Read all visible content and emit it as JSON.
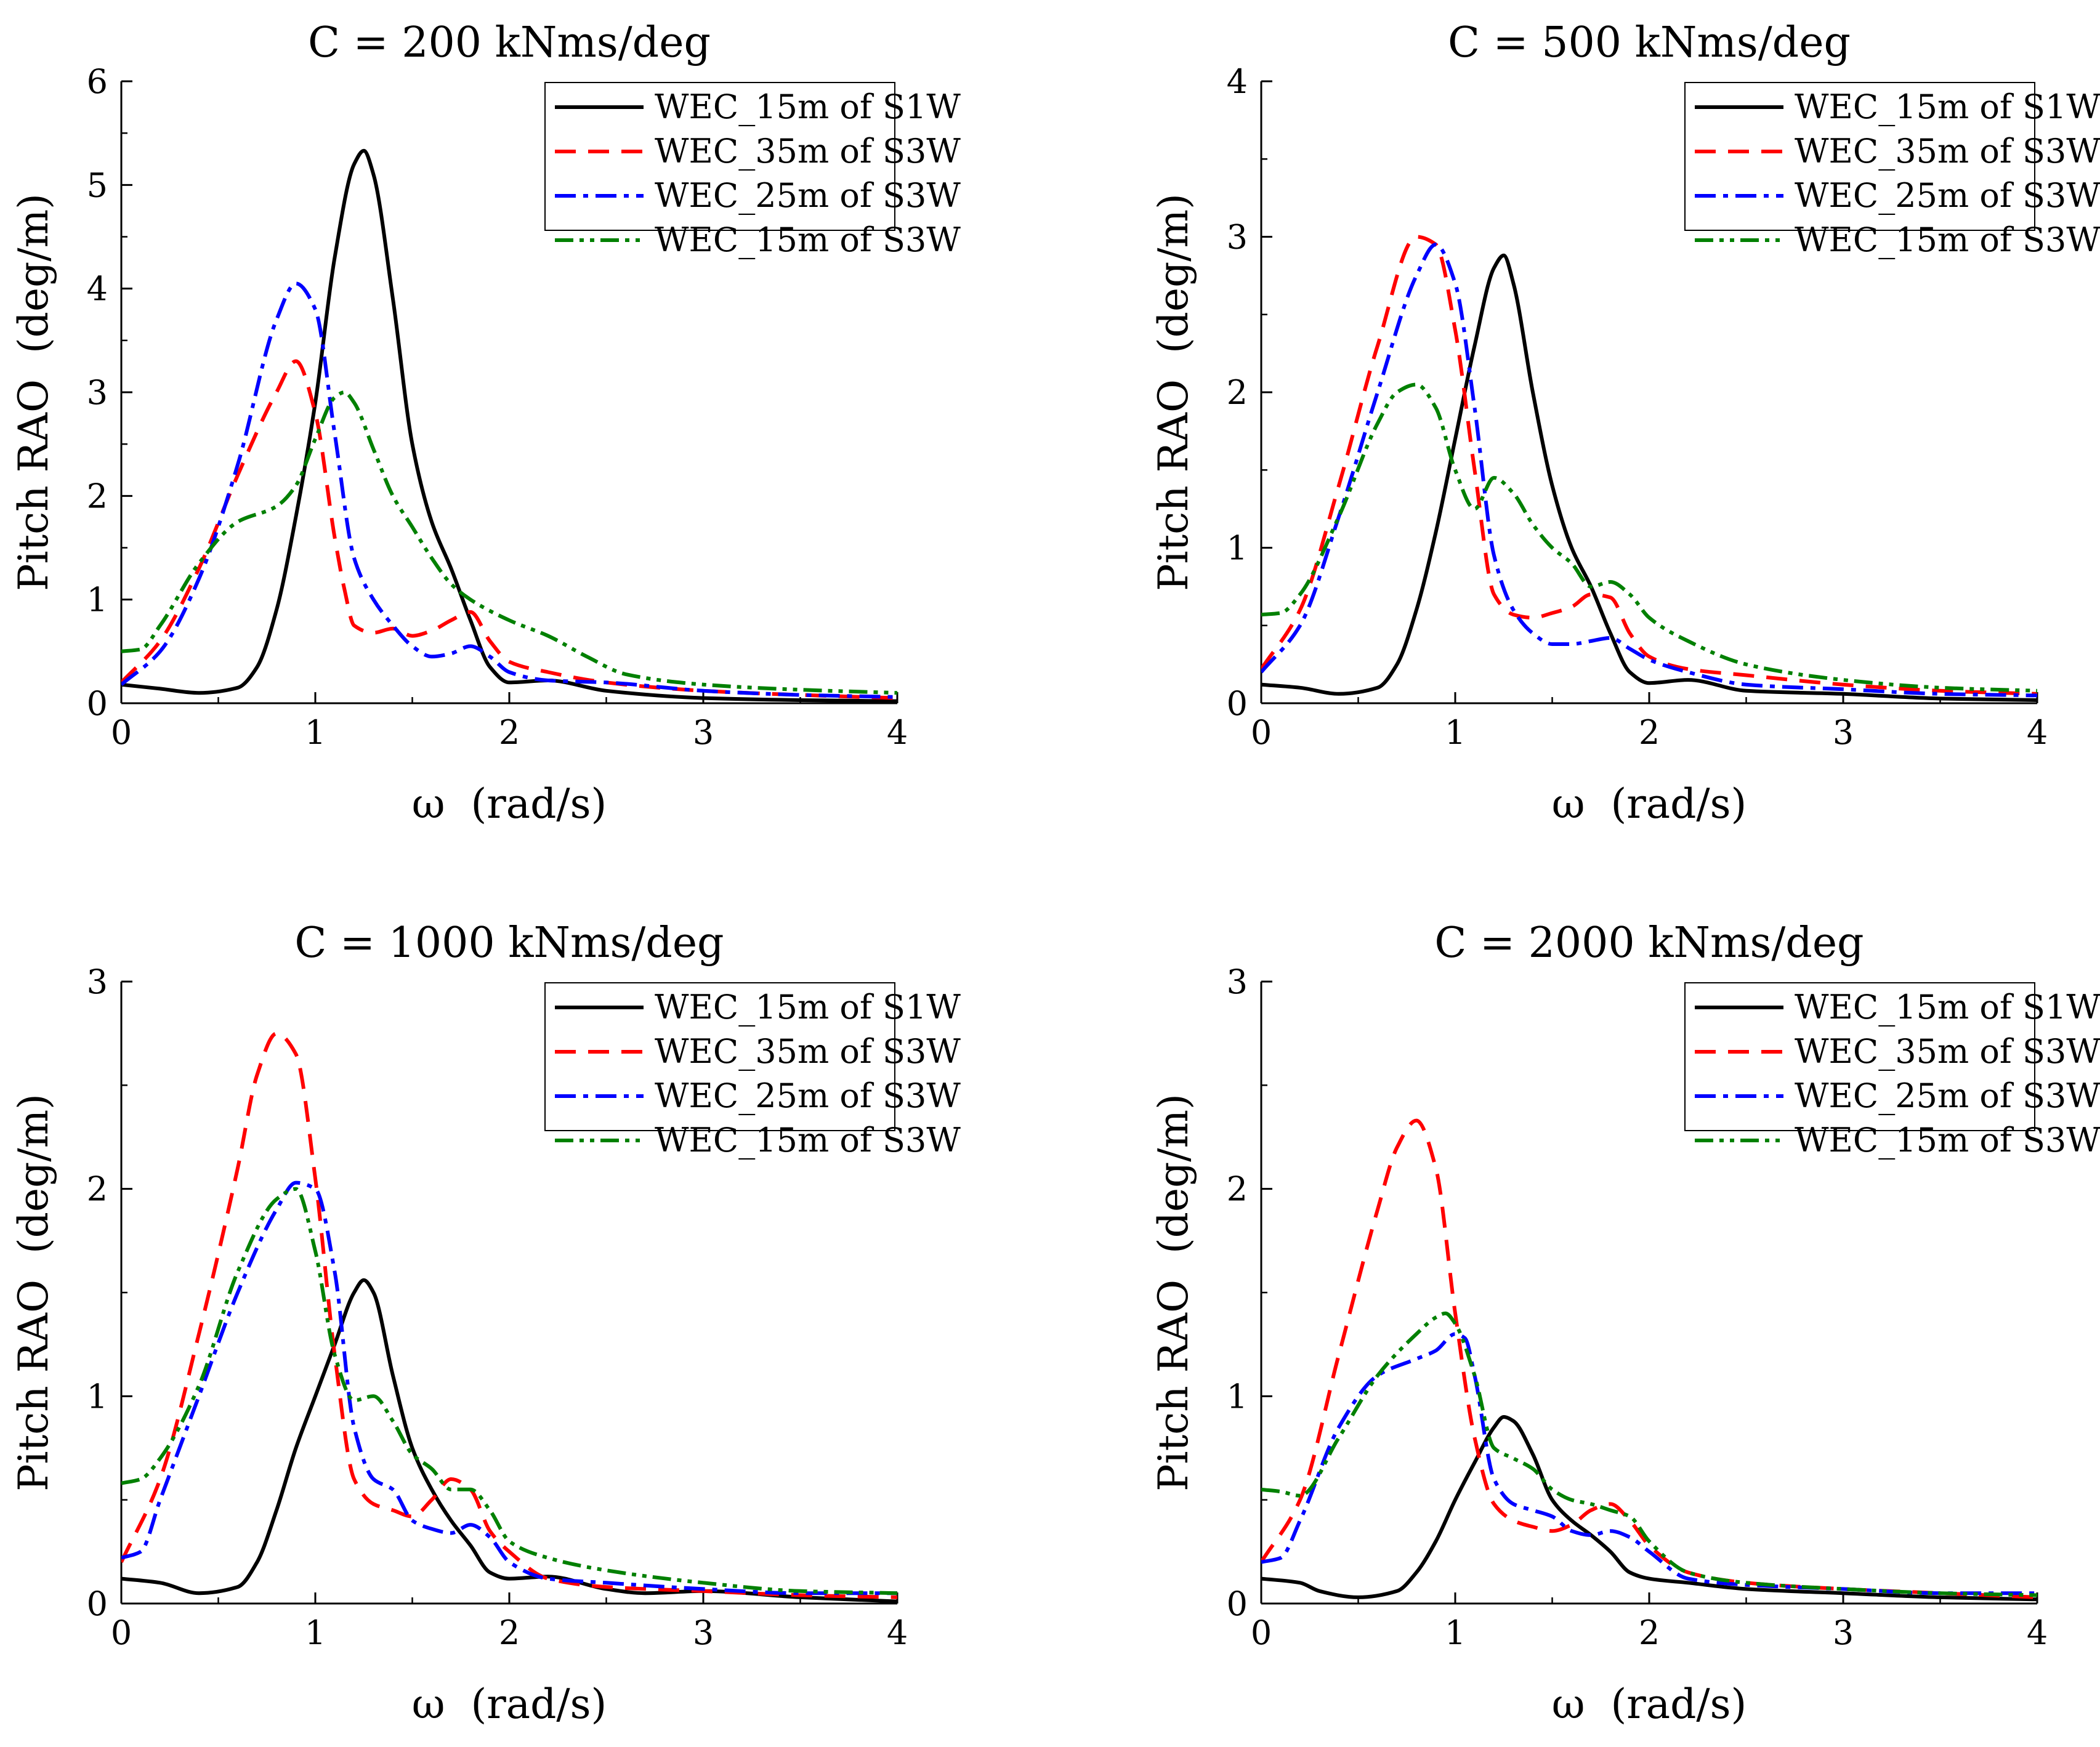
{
  "figure": {
    "x_unit_label": "ω  (rad/s)",
    "y_unit_label": "Pitch RAO  (deg/m)"
  },
  "legend_entries": [
    "WEC_15m of S1W",
    "WEC_35m of S3W",
    "WEC_25m of S3W",
    "WEC_15m of S3W"
  ],
  "series_styles": [
    {
      "name": "WEC_15m of S1W",
      "color": "#000000",
      "dash": "solid"
    },
    {
      "name": "WEC_35m of S3W",
      "color": "#ff0000",
      "dash": "dash"
    },
    {
      "name": "WEC_25m of S3W",
      "color": "#0000ff",
      "dash": "dashdot"
    },
    {
      "name": "WEC_15m of S3W",
      "color": "#008000",
      "dash": "dashdotdot"
    }
  ],
  "chart_data": [
    {
      "type": "line",
      "title": "C = 200 kNms/deg",
      "xlabel": "ω  (rad/s)",
      "ylabel": "Pitch RAO  (deg/m)",
      "xlim": [
        0,
        4
      ],
      "ylim": [
        0,
        6
      ],
      "xticks": [
        "0",
        "1",
        "2",
        "3",
        "4"
      ],
      "yticks": [
        "0",
        "1",
        "2",
        "3",
        "4",
        "5",
        "6"
      ],
      "legend_position": "top-right",
      "series": [
        {
          "name": "WEC_15m of S1W",
          "x": [
            0,
            0.2,
            0.4,
            0.6,
            0.7,
            0.8,
            0.9,
            1.0,
            1.1,
            1.2,
            1.25,
            1.3,
            1.4,
            1.5,
            1.6,
            1.7,
            1.8,
            1.9,
            2.0,
            2.2,
            2.5,
            3.0,
            3.5,
            4.0
          ],
          "y": [
            0.18,
            0.14,
            0.1,
            0.15,
            0.35,
            0.9,
            1.8,
            2.9,
            4.3,
            5.2,
            5.33,
            5.1,
            3.9,
            2.5,
            1.75,
            1.3,
            0.8,
            0.35,
            0.2,
            0.22,
            0.12,
            0.05,
            0.03,
            0.02
          ]
        },
        {
          "name": "WEC_35m of S3W",
          "x": [
            0,
            0.2,
            0.4,
            0.6,
            0.8,
            0.9,
            1.0,
            1.1,
            1.15,
            1.2,
            1.3,
            1.4,
            1.5,
            1.6,
            1.7,
            1.8,
            1.9,
            2.0,
            2.2,
            2.5,
            3.0,
            3.5,
            4.0
          ],
          "y": [
            0.2,
            0.6,
            1.3,
            2.2,
            3.0,
            3.3,
            2.8,
            1.6,
            1.1,
            0.75,
            0.68,
            0.72,
            0.65,
            0.7,
            0.8,
            0.88,
            0.6,
            0.4,
            0.3,
            0.2,
            0.12,
            0.08,
            0.05
          ]
        },
        {
          "name": "WEC_25m of S3W",
          "x": [
            0,
            0.2,
            0.4,
            0.6,
            0.8,
            0.9,
            1.0,
            1.1,
            1.2,
            1.3,
            1.4,
            1.5,
            1.6,
            1.7,
            1.8,
            1.9,
            2.0,
            2.2,
            2.5,
            3.0,
            3.5,
            4.0
          ],
          "y": [
            0.18,
            0.5,
            1.2,
            2.3,
            3.7,
            4.05,
            3.8,
            2.6,
            1.4,
            1.0,
            0.75,
            0.55,
            0.45,
            0.48,
            0.55,
            0.45,
            0.3,
            0.22,
            0.2,
            0.12,
            0.08,
            0.06
          ]
        },
        {
          "name": "WEC_15m of S3W",
          "x": [
            0,
            0.1,
            0.2,
            0.4,
            0.6,
            0.8,
            0.9,
            1.0,
            1.1,
            1.15,
            1.2,
            1.3,
            1.4,
            1.5,
            1.6,
            1.7,
            1.8,
            2.0,
            2.2,
            2.4,
            2.6,
            3.0,
            3.5,
            4.0
          ],
          "y": [
            0.5,
            0.52,
            0.75,
            1.35,
            1.75,
            1.9,
            2.1,
            2.55,
            2.95,
            3.0,
            2.9,
            2.45,
            2.0,
            1.7,
            1.4,
            1.15,
            1.0,
            0.8,
            0.65,
            0.45,
            0.28,
            0.18,
            0.13,
            0.1
          ]
        }
      ]
    },
    {
      "type": "line",
      "title": "C = 500 kNms/deg",
      "xlabel": "ω  (rad/s)",
      "ylabel": "Pitch RAO  (deg/m)",
      "xlim": [
        0,
        4
      ],
      "ylim": [
        0,
        4
      ],
      "xticks": [
        "0",
        "1",
        "2",
        "3",
        "4"
      ],
      "yticks": [
        "0",
        "1",
        "2",
        "3",
        "4"
      ],
      "legend_position": "top-right",
      "series": [
        {
          "name": "WEC_15m of S1W",
          "x": [
            0,
            0.2,
            0.4,
            0.6,
            0.7,
            0.8,
            0.9,
            1.0,
            1.1,
            1.2,
            1.25,
            1.3,
            1.4,
            1.5,
            1.6,
            1.7,
            1.8,
            1.9,
            2.0,
            2.2,
            2.5,
            3.0,
            3.5,
            4.0
          ],
          "y": [
            0.12,
            0.1,
            0.06,
            0.1,
            0.25,
            0.6,
            1.1,
            1.7,
            2.3,
            2.8,
            2.88,
            2.7,
            2.0,
            1.4,
            1.0,
            0.75,
            0.45,
            0.2,
            0.13,
            0.15,
            0.08,
            0.06,
            0.03,
            0.02
          ]
        },
        {
          "name": "WEC_35m of S3W",
          "x": [
            0,
            0.2,
            0.4,
            0.6,
            0.8,
            0.9,
            1.0,
            1.1,
            1.2,
            1.3,
            1.4,
            1.5,
            1.6,
            1.7,
            1.8,
            1.9,
            2.0,
            2.2,
            2.5,
            3.0,
            3.5,
            4.0
          ],
          "y": [
            0.22,
            0.6,
            1.4,
            2.3,
            3.0,
            2.95,
            2.4,
            1.5,
            0.7,
            0.57,
            0.55,
            0.58,
            0.62,
            0.7,
            0.68,
            0.45,
            0.3,
            0.22,
            0.18,
            0.12,
            0.08,
            0.06
          ]
        },
        {
          "name": "WEC_25m of S3W",
          "x": [
            0,
            0.2,
            0.4,
            0.6,
            0.8,
            0.9,
            1.0,
            1.1,
            1.2,
            1.3,
            1.4,
            1.5,
            1.6,
            1.7,
            1.8,
            1.9,
            2.0,
            2.2,
            2.5,
            3.0,
            3.5,
            4.0
          ],
          "y": [
            0.2,
            0.5,
            1.2,
            2.0,
            2.75,
            2.95,
            2.7,
            1.9,
            0.95,
            0.6,
            0.45,
            0.38,
            0.38,
            0.4,
            0.42,
            0.35,
            0.28,
            0.2,
            0.12,
            0.09,
            0.06,
            0.05
          ]
        },
        {
          "name": "WEC_15m of S3W",
          "x": [
            0,
            0.1,
            0.2,
            0.4,
            0.6,
            0.7,
            0.8,
            0.9,
            1.0,
            1.1,
            1.2,
            1.3,
            1.4,
            1.5,
            1.6,
            1.7,
            1.8,
            1.9,
            2.0,
            2.2,
            2.5,
            3.0,
            3.5,
            4.0
          ],
          "y": [
            0.57,
            0.58,
            0.7,
            1.2,
            1.8,
            2.0,
            2.05,
            1.9,
            1.5,
            1.25,
            1.45,
            1.35,
            1.15,
            1.0,
            0.9,
            0.75,
            0.78,
            0.7,
            0.55,
            0.4,
            0.25,
            0.15,
            0.1,
            0.08
          ]
        }
      ]
    },
    {
      "type": "line",
      "title": "C = 1000 kNms/deg",
      "xlabel": "ω  (rad/s)",
      "ylabel": "Pitch RAO  (deg/m)",
      "xlim": [
        0,
        4
      ],
      "ylim": [
        0,
        3
      ],
      "xticks": [
        "0",
        "1",
        "2",
        "3",
        "4"
      ],
      "yticks": [
        "0",
        "1",
        "2",
        "3"
      ],
      "legend_position": "top-right",
      "series": [
        {
          "name": "WEC_15m of S1W",
          "x": [
            0,
            0.2,
            0.4,
            0.6,
            0.7,
            0.8,
            0.9,
            1.0,
            1.1,
            1.2,
            1.25,
            1.3,
            1.4,
            1.5,
            1.6,
            1.7,
            1.8,
            1.9,
            2.0,
            2.2,
            2.5,
            2.7,
            3.0,
            3.5,
            4.0
          ],
          "y": [
            0.12,
            0.1,
            0.05,
            0.08,
            0.2,
            0.45,
            0.75,
            1.0,
            1.25,
            1.5,
            1.56,
            1.5,
            1.1,
            0.75,
            0.55,
            0.4,
            0.28,
            0.15,
            0.12,
            0.13,
            0.07,
            0.05,
            0.06,
            0.03,
            0.01
          ]
        },
        {
          "name": "WEC_35m of S3W",
          "x": [
            0,
            0.2,
            0.4,
            0.6,
            0.7,
            0.8,
            0.9,
            1.0,
            1.1,
            1.2,
            1.3,
            1.4,
            1.5,
            1.6,
            1.7,
            1.8,
            1.9,
            2.0,
            2.2,
            2.5,
            3.0,
            3.5,
            4.0
          ],
          "y": [
            0.2,
            0.6,
            1.3,
            2.1,
            2.55,
            2.75,
            2.65,
            2.05,
            1.2,
            0.6,
            0.48,
            0.45,
            0.42,
            0.5,
            0.6,
            0.55,
            0.35,
            0.25,
            0.12,
            0.08,
            0.06,
            0.04,
            0.03
          ]
        },
        {
          "name": "WEC_25m of S3W",
          "x": [
            0,
            0.1,
            0.2,
            0.4,
            0.6,
            0.8,
            0.9,
            1.0,
            1.1,
            1.2,
            1.3,
            1.4,
            1.5,
            1.6,
            1.7,
            1.8,
            1.9,
            2.0,
            2.2,
            2.5,
            3.0,
            3.5,
            4.0
          ],
          "y": [
            0.22,
            0.25,
            0.5,
            1.0,
            1.5,
            1.9,
            2.03,
            2.0,
            1.6,
            0.85,
            0.6,
            0.55,
            0.4,
            0.36,
            0.34,
            0.38,
            0.32,
            0.2,
            0.12,
            0.1,
            0.07,
            0.05,
            0.05
          ]
        },
        {
          "name": "WEC_15m of S3W",
          "x": [
            0,
            0.1,
            0.2,
            0.4,
            0.6,
            0.8,
            0.9,
            1.0,
            1.1,
            1.2,
            1.3,
            1.4,
            1.5,
            1.6,
            1.7,
            1.8,
            1.9,
            2.0,
            2.2,
            2.5,
            3.0,
            3.5,
            4.0
          ],
          "y": [
            0.58,
            0.6,
            0.7,
            1.05,
            1.6,
            1.95,
            2.0,
            1.7,
            1.2,
            0.98,
            1.0,
            0.88,
            0.72,
            0.65,
            0.55,
            0.55,
            0.45,
            0.3,
            0.22,
            0.16,
            0.1,
            0.06,
            0.05
          ]
        }
      ]
    },
    {
      "type": "line",
      "title": "C = 2000 kNms/deg",
      "xlabel": "ω  (rad/s)",
      "ylabel": "Pitch RAO  (deg/m)",
      "xlim": [
        0,
        4
      ],
      "ylim": [
        0,
        3
      ],
      "xticks": [
        "0",
        "1",
        "2",
        "3",
        "4"
      ],
      "yticks": [
        "0",
        "1",
        "2",
        "3"
      ],
      "legend_position": "top-right",
      "series": [
        {
          "name": "WEC_15m of S1W",
          "x": [
            0,
            0.2,
            0.3,
            0.5,
            0.7,
            0.8,
            0.9,
            1.0,
            1.1,
            1.2,
            1.25,
            1.3,
            1.4,
            1.5,
            1.6,
            1.7,
            1.8,
            1.9,
            2.0,
            2.2,
            2.5,
            3.0,
            3.5,
            4.0
          ],
          "y": [
            0.12,
            0.1,
            0.06,
            0.03,
            0.06,
            0.15,
            0.3,
            0.5,
            0.68,
            0.85,
            0.9,
            0.88,
            0.72,
            0.5,
            0.4,
            0.33,
            0.25,
            0.15,
            0.12,
            0.1,
            0.07,
            0.05,
            0.03,
            0.02
          ]
        },
        {
          "name": "WEC_35m of S3W",
          "x": [
            0,
            0.2,
            0.4,
            0.6,
            0.7,
            0.8,
            0.9,
            1.0,
            1.1,
            1.2,
            1.3,
            1.4,
            1.5,
            1.6,
            1.7,
            1.8,
            1.9,
            2.0,
            2.2,
            2.5,
            3.0,
            3.5,
            4.0
          ],
          "y": [
            0.2,
            0.5,
            1.2,
            1.9,
            2.2,
            2.33,
            2.1,
            1.4,
            0.8,
            0.48,
            0.4,
            0.37,
            0.35,
            0.38,
            0.45,
            0.48,
            0.4,
            0.28,
            0.15,
            0.1,
            0.07,
            0.05,
            0.03
          ]
        },
        {
          "name": "WEC_25m of S3W",
          "x": [
            0,
            0.1,
            0.2,
            0.4,
            0.6,
            0.8,
            0.9,
            1.0,
            1.05,
            1.1,
            1.2,
            1.3,
            1.4,
            1.5,
            1.6,
            1.7,
            1.8,
            1.9,
            2.0,
            2.2,
            2.5,
            3.0,
            3.5,
            4.0
          ],
          "y": [
            0.2,
            0.22,
            0.4,
            0.85,
            1.1,
            1.18,
            1.22,
            1.3,
            1.28,
            1.1,
            0.6,
            0.48,
            0.45,
            0.42,
            0.35,
            0.33,
            0.35,
            0.32,
            0.25,
            0.12,
            0.09,
            0.07,
            0.05,
            0.05
          ]
        },
        {
          "name": "WEC_15m of S3W",
          "x": [
            0,
            0.1,
            0.2,
            0.4,
            0.6,
            0.8,
            0.9,
            0.95,
            1.0,
            1.1,
            1.2,
            1.3,
            1.4,
            1.5,
            1.6,
            1.7,
            1.8,
            1.9,
            2.0,
            2.2,
            2.5,
            3.0,
            3.5,
            4.0
          ],
          "y": [
            0.55,
            0.54,
            0.52,
            0.8,
            1.1,
            1.3,
            1.38,
            1.4,
            1.35,
            1.1,
            0.75,
            0.7,
            0.65,
            0.55,
            0.5,
            0.48,
            0.45,
            0.42,
            0.3,
            0.15,
            0.1,
            0.07,
            0.05,
            0.04
          ]
        }
      ]
    }
  ]
}
